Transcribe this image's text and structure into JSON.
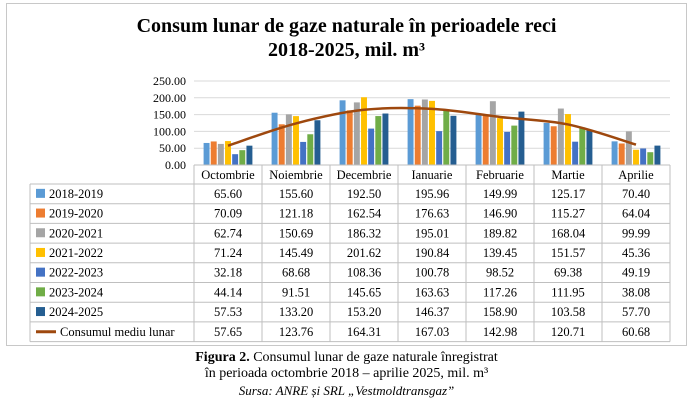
{
  "title_line1": "Consum lunar de gaze naturale în perioadele reci",
  "title_line2": "2018-2025, mil. m³",
  "caption_label": "Figura 2.",
  "caption_text1": " Consumul lunar de gaze naturale înregistrat",
  "caption_text2": "în perioada octombrie 2018 – aprilie 2025, mil. m³",
  "source": "Sursa: ANRE și SRL „Vestmoldtransgaz”",
  "chart_data": {
    "type": "bar",
    "title": "Consum lunar de gaze naturale în perioadele reci 2018-2025, mil. m³",
    "categories": [
      "Octombrie",
      "Noiembrie",
      "Decembrie",
      "Ianuarie",
      "Februarie",
      "Martie",
      "Aprilie"
    ],
    "y_ticks": [
      "250.00",
      "200.00",
      "150.00",
      "100.00",
      "50.00",
      "0.00"
    ],
    "ylim": [
      0,
      250
    ],
    "series": [
      {
        "name": "2018-2019",
        "color": "#5b9bd5",
        "values": [
          "65.60",
          "155.60",
          "192.50",
          "195.96",
          "149.99",
          "125.17",
          "70.40"
        ]
      },
      {
        "name": "2019-2020",
        "color": "#ed7d31",
        "values": [
          "70.09",
          "121.18",
          "162.54",
          "176.63",
          "146.90",
          "115.27",
          "64.04"
        ]
      },
      {
        "name": "2020-2021",
        "color": "#a5a5a5",
        "values": [
          "62.74",
          "150.69",
          "186.32",
          "195.01",
          "189.82",
          "168.04",
          "99.99"
        ]
      },
      {
        "name": "2021-2022",
        "color": "#ffc000",
        "values": [
          "71.24",
          "145.49",
          "201.62",
          "190.84",
          "139.45",
          "151.57",
          "45.36"
        ]
      },
      {
        "name": "2022-2023",
        "color": "#4472c4",
        "values": [
          "32.18",
          "68.68",
          "108.36",
          "100.78",
          "98.52",
          "69.38",
          "49.19"
        ]
      },
      {
        "name": "2023-2024",
        "color": "#70ad47",
        "values": [
          "44.14",
          "91.51",
          "145.65",
          "163.63",
          "117.26",
          "111.95",
          "38.08"
        ]
      },
      {
        "name": "2024-2025",
        "color": "#255e91",
        "values": [
          "57.53",
          "133.20",
          "153.20",
          "146.37",
          "158.90",
          "103.58",
          "57.70"
        ]
      }
    ],
    "line": {
      "name": "Consumul mediu lunar",
      "color": "#9e480e",
      "values": [
        "57.65",
        "123.76",
        "164.31",
        "167.03",
        "142.98",
        "120.71",
        "60.68"
      ]
    }
  }
}
